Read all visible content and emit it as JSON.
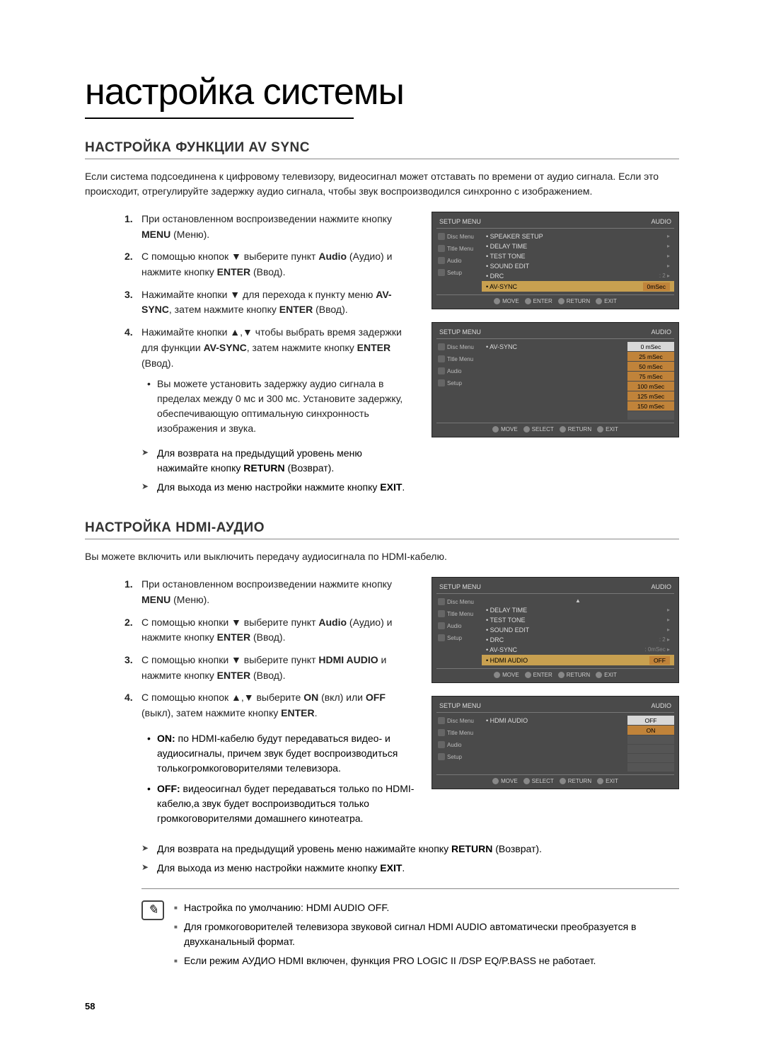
{
  "title": "настройка системы",
  "section1": {
    "heading": "НАСТРОЙКА ФУНКЦИИ AV SYNC",
    "intro": "Если система подсоединена к цифровому телевизору, видеосигнал может отставать по времени от аудио сигнала. Если это происходит, отрегулируйте задержку аудио сигнала, чтобы звук воспроизводился синхронно с изображением.",
    "step1_a": "При остановленном воспроизведении нажмите кнопку ",
    "step1_b": "MENU",
    "step1_c": " (Меню).",
    "step2_a": "С помощью кнопок ▼ выберите пункт ",
    "step2_b": "Audio",
    "step2_c": " (Аудио) и нажмите кнопку ",
    "step2_d": "ENTER",
    "step2_e": " (Ввод).",
    "step3_a": "Нажимайте кнопки ▼ для перехода к пункту меню ",
    "step3_b": "AV-SYNC",
    "step3_c": ", затем нажмите кнопку ",
    "step3_d": "ENTER",
    "step3_e": " (Ввод).",
    "step4_a": "Нажимайте кнопки ▲,▼ чтобы выбрать время задержки для функции ",
    "step4_b": "AV-SYNC",
    "step4_c": ", затем нажмите кнопку ",
    "step4_d": "ENTER",
    "step4_e": " (Ввод).",
    "bullet1": "Вы можете установить задержку аудио сигнала в пределах между 0 мс и 300 мс. Установите задержку, обеспечивающую оптимальную синхронность изображения и звука.",
    "tip1_a": "Для возврата на предыдущий уровень меню нажимайте кнопку ",
    "tip1_b": "RETURN",
    "tip1_c": " (Возврат).",
    "tip2_a": "Для выхода из меню настройки нажмите кнопку ",
    "tip2_b": "EXIT",
    "tip2_c": "."
  },
  "section2": {
    "heading": "НАСТРОЙКА HDMI-АУДИО",
    "intro": "Вы можете включить или выключить передачу аудиосигнала по HDMI-кабелю.",
    "step1_a": "При остановленном воспроизведении нажмите кнопку ",
    "step1_b": "MENU",
    "step1_c": " (Меню).",
    "step2_a": "С помощью кнопки  ▼ выберите пункт ",
    "step2_b": "Audio",
    "step2_c": " (Аудио) и нажмите кнопку ",
    "step2_d": "ENTER",
    "step2_e": " (Ввод).",
    "step3_a": "С помощью кнопки ▼ выберите пункт ",
    "step3_b": "HDMI AUDIO",
    "step3_c": " и нажмите кнопку ",
    "step3_d": "ENTER",
    "step3_e": " (Ввод).",
    "step4_a": "С помощью кнопок ▲,▼ выберите ",
    "step4_b": "ON",
    "step4_c": " (вкл) или ",
    "step4_d": "OFF",
    "step4_e": " (выкл), затем нажмите кнопку ",
    "step4_f": "ENTER",
    "step4_g": ".",
    "bullet_on_a": "ON:",
    "bullet_on_b": " по HDMI-кабелю будут передаваться видео- и аудиосигналы, причем звук будет воспроизводиться толькогромкоговорителями телевизора.",
    "bullet_off_a": "OFF:",
    "bullet_off_b": " видеосигнал будет передаваться только по HDMI-кабелю,а звук будет воспроизводиться только громкоговорителями  домашнего кинотеатра.",
    "tip1_a": "Для возврата на предыдущий уровень меню нажимайте кнопку ",
    "tip1_b": "RETURN",
    "tip1_c": " (Возврат).",
    "tip2_a": "Для выхода из меню настройки нажмите кнопку ",
    "tip2_b": "EXIT",
    "tip2_c": ".",
    "note1": "Настройка по умолчанию: HDMI AUDIO OFF.",
    "note2": "Для громкоговорителей телевизора звуковой сигнал HDMI AUDIO автоматически преобразуется в двухканальный формат.",
    "note3": "Если режим АУДИО HDMI включен, функция PRO LOGIC II /DSP EQ/P.BASS не работает."
  },
  "page_number": "58",
  "osd": {
    "header_left": "SETUP MENU",
    "header_right": "AUDIO",
    "left_items": [
      "Disc Menu",
      "Title Menu",
      "Audio",
      "Setup"
    ],
    "footer": {
      "move": "MOVE",
      "enter": "ENTER",
      "select": "SELECT",
      "return": "RETURN",
      "exit": "EXIT"
    },
    "menu1": {
      "rows": [
        {
          "label": "• SPEAKER SETUP",
          "val": "",
          "arrow": "▸"
        },
        {
          "label": "• DELAY TIME",
          "val": "",
          "arrow": "▸"
        },
        {
          "label": "• TEST TONE",
          "val": "",
          "arrow": "▸"
        },
        {
          "label": "• SOUND EDIT",
          "val": "",
          "arrow": "▸"
        },
        {
          "label": "• DRC",
          "val": ": 2",
          "arrow": "▸"
        },
        {
          "label": "• AV-SYNC",
          "val": ": 0mSec",
          "arrow": "",
          "hl": true
        }
      ]
    },
    "menu2": {
      "label": "• AV-SYNC",
      "options": [
        "0 mSec",
        "25 mSec",
        "50 mSec",
        "75 mSec",
        "100 mSec",
        "125 mSec",
        "150 mSec"
      ]
    },
    "menu3": {
      "rows": [
        {
          "label": "• DELAY TIME",
          "val": "",
          "arrow": "▸"
        },
        {
          "label": "• TEST TONE",
          "val": "",
          "arrow": "▸"
        },
        {
          "label": "• SOUND EDIT",
          "val": "",
          "arrow": "▸"
        },
        {
          "label": "• DRC",
          "val": ": 2",
          "arrow": "▸"
        },
        {
          "label": "• AV-SYNC",
          "val": ": 0mSec",
          "arrow": "▸"
        },
        {
          "label": "• HDMI AUDIO",
          "val": ": OFF",
          "arrow": "",
          "hl": true
        }
      ]
    },
    "menu4": {
      "label": "• HDMI AUDIO",
      "options": [
        "OFF",
        "ON"
      ]
    }
  },
  "colors": {
    "osd_bg": "#4a4a4a",
    "osd_hl": "#c8a050",
    "osd_sub": "#c0833a",
    "text": "#222222"
  }
}
